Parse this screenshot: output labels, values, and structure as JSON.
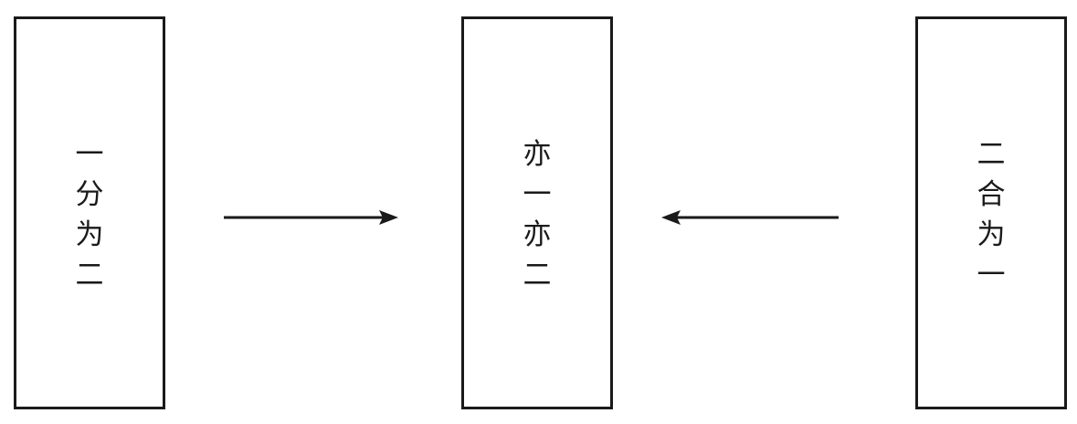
{
  "boxes": {
    "left": {
      "chars": [
        "一",
        "分",
        "为",
        "二"
      ]
    },
    "center": {
      "chars": [
        "亦",
        "一",
        "亦",
        "二"
      ]
    },
    "right": {
      "chars": [
        "二",
        "合",
        "为",
        "一"
      ]
    }
  },
  "arrows": [
    {
      "name": "arrow-left-to-center",
      "direction": "right"
    },
    {
      "name": "arrow-right-to-center",
      "direction": "left"
    }
  ],
  "colors": {
    "stroke": "#1a1a1a",
    "background": "#ffffff"
  }
}
